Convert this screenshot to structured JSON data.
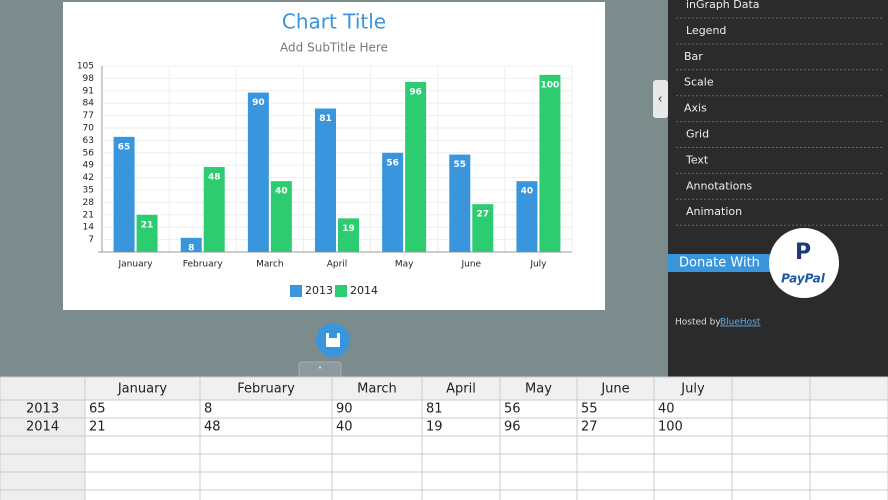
{
  "chart_data": {
    "type": "bar",
    "title": "Chart Title",
    "subtitle": "Add SubTitle Here",
    "categories": [
      "January",
      "February",
      "March",
      "April",
      "May",
      "June",
      "July"
    ],
    "series": [
      {
        "name": "2013",
        "color": "#3a96dc",
        "values": [
          65,
          8,
          90,
          81,
          56,
          55,
          40
        ]
      },
      {
        "name": "2014",
        "color": "#2ecc71",
        "values": [
          21,
          48,
          40,
          19,
          96,
          27,
          100
        ]
      }
    ],
    "ylim": [
      0,
      105
    ],
    "yticks": [
      7,
      14,
      21,
      28,
      35,
      42,
      49,
      56,
      63,
      70,
      77,
      84,
      91,
      98,
      105
    ],
    "grid": true,
    "legend": "bottom"
  },
  "sidebar": {
    "menu": [
      "inGraph Data",
      "Legend",
      "Bar",
      "Scale",
      "Axis",
      "Grid",
      "Text",
      "Annotations",
      "Animation"
    ],
    "donate": "Donate With",
    "paypal": "PayPal",
    "hosted_by": "Hosted by",
    "host_link": "BlueHost"
  }
}
